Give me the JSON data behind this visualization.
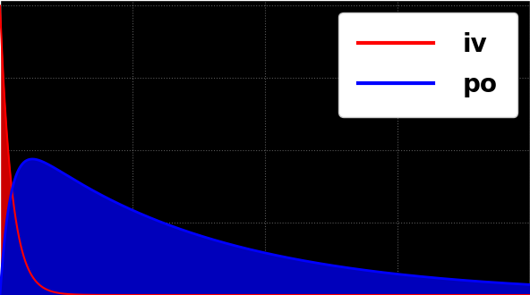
{
  "background_color": "#000000",
  "iv_color": "#ff0000",
  "po_color": "#0000ff",
  "iv_fill_color": "#cc0000",
  "po_fill_color": "#0000bb",
  "iv_alpha": 1.0,
  "po_alpha": 1.0,
  "legend_labels": [
    "iv",
    "po"
  ],
  "legend_fontsize": 20,
  "legend_bg": "#ffffff",
  "grid_color": "#ffffff",
  "grid_alpha": 0.35,
  "grid_linestyle": ":",
  "axis_color": "#ffffff",
  "iv_C0": 1.0,
  "iv_ke": 4.5,
  "po_ka": 5.0,
  "po_ke": 0.28,
  "po_scale": 0.47,
  "t_max": 10.0,
  "n_points": 2000,
  "figsize": [
    5.92,
    3.3
  ],
  "dpi": 100,
  "tick_color": "#ffffff",
  "spine_color": "#ffffff",
  "xticks": [
    0,
    2.5,
    5.0,
    7.5,
    10.0
  ],
  "yticks": [
    0,
    0.25,
    0.5,
    0.75,
    1.0
  ]
}
